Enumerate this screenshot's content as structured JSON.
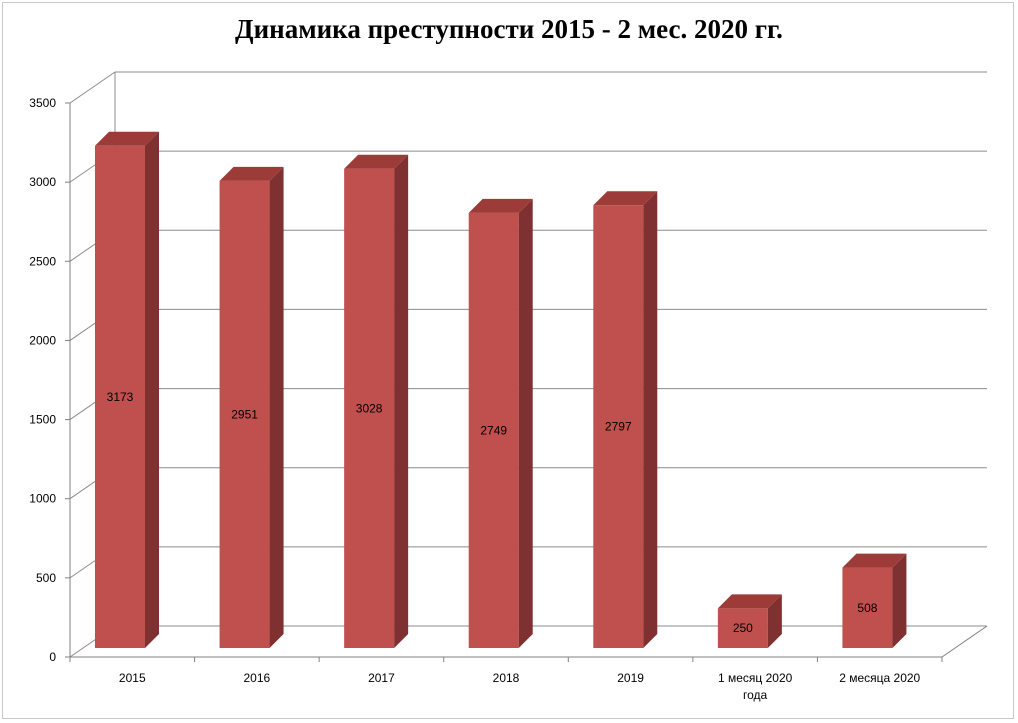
{
  "chart_data": {
    "type": "bar",
    "title": "Динамика преступности 2015 - 2 мес. 2020 гг.",
    "categories": [
      "2015",
      "2016",
      "2017",
      "2018",
      "2019",
      "1 месяц 2020 года",
      "2 месяца 2020"
    ],
    "category_lines": [
      [
        "2015"
      ],
      [
        "2016"
      ],
      [
        "2017"
      ],
      [
        "2018"
      ],
      [
        "2019"
      ],
      [
        "1 месяц 2020",
        "года"
      ],
      [
        "2 месяца 2020"
      ]
    ],
    "values": [
      3173,
      2951,
      3028,
      2749,
      2797,
      250,
      508
    ],
    "data_labels": [
      "3173",
      "2951",
      "3028",
      "2749",
      "2797",
      "250",
      "508"
    ],
    "y_ticks": [
      0,
      500,
      1000,
      1500,
      2000,
      2500,
      3000,
      3500
    ],
    "y_tick_labels": [
      "0",
      "500",
      "1000",
      "1500",
      "2000",
      "2500",
      "3000",
      "3500"
    ],
    "ylim": [
      0,
      3500
    ],
    "grid": true,
    "legend": "none",
    "style": "3d-column",
    "colors": {
      "bar_front": "#c0504d",
      "bar_side": "#7f3030",
      "bar_top": "#9c3b38",
      "grid": "#8c8c8c",
      "axis": "#808080"
    }
  }
}
